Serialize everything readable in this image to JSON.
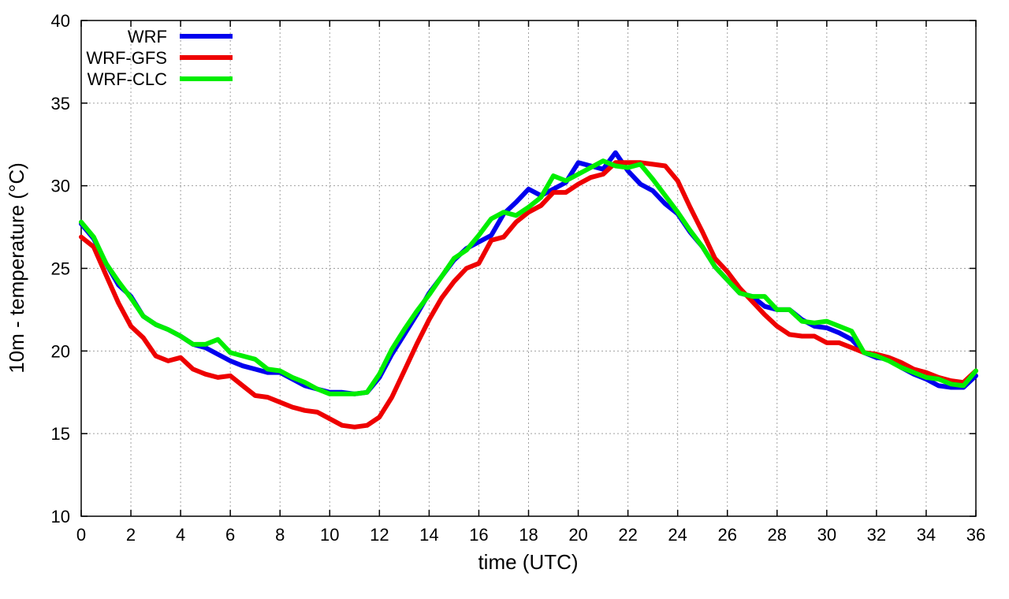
{
  "chart_data": {
    "type": "line",
    "title": "",
    "xlabel": "time (UTC)",
    "ylabel": "10m - temperature (°C)",
    "xlim": [
      0,
      36
    ],
    "ylim": [
      10,
      40
    ],
    "xticks": [
      "0",
      "2",
      "4",
      "6",
      "8",
      "10",
      "12",
      "14",
      "16",
      "18",
      "20",
      "22",
      "24",
      "26",
      "28",
      "30",
      "32",
      "34",
      "36"
    ],
    "yticks": [
      "10",
      "15",
      "20",
      "25",
      "30",
      "35",
      "40"
    ],
    "grid": true,
    "legend_position": "top-left",
    "x": [
      0,
      0.5,
      1,
      1.5,
      2,
      2.5,
      3,
      3.5,
      4,
      4.5,
      5,
      5.5,
      6,
      6.5,
      7,
      7.5,
      8,
      8.5,
      9,
      9.5,
      10,
      10.5,
      11,
      11.5,
      12,
      12.5,
      13,
      13.5,
      14,
      14.5,
      15,
      15.5,
      16,
      16.5,
      17,
      17.5,
      18,
      18.5,
      19,
      19.5,
      20,
      20.5,
      21,
      21.5,
      22,
      22.5,
      23,
      23.5,
      24,
      24.5,
      25,
      25.5,
      26,
      26.5,
      27,
      27.5,
      28,
      28.5,
      29,
      29.5,
      30,
      30.5,
      31,
      31.5,
      32,
      32.5,
      33,
      33.5,
      34,
      34.5,
      35,
      35.5,
      36
    ],
    "series": [
      {
        "name": "WRF",
        "color": "#0000ee",
        "values": [
          27.7,
          26.8,
          25.3,
          24.0,
          23.3,
          22.1,
          21.6,
          21.3,
          20.9,
          20.4,
          20.2,
          19.8,
          19.4,
          19.1,
          18.9,
          18.7,
          18.7,
          18.3,
          17.9,
          17.7,
          17.5,
          17.5,
          17.4,
          17.5,
          18.4,
          19.8,
          21.0,
          22.2,
          23.5,
          24.5,
          25.5,
          26.2,
          26.6,
          27.0,
          28.3,
          29.0,
          29.8,
          29.4,
          29.8,
          30.2,
          31.4,
          31.2,
          31.0,
          32.0,
          30.9,
          30.1,
          29.7,
          28.9,
          28.3,
          27.2,
          26.3,
          25.1,
          24.3,
          23.5,
          23.3,
          22.7,
          22.5,
          22.5,
          21.9,
          21.5,
          21.4,
          21.1,
          20.7,
          19.9,
          19.6,
          19.5,
          19.0,
          18.6,
          18.3,
          17.9,
          17.8,
          17.8,
          18.5
        ]
      },
      {
        "name": "WRF-GFS",
        "color": "#ee0000",
        "values": [
          26.9,
          26.3,
          24.6,
          22.9,
          21.5,
          20.8,
          19.7,
          19.4,
          19.6,
          18.9,
          18.6,
          18.4,
          18.5,
          17.9,
          17.3,
          17.2,
          16.9,
          16.6,
          16.4,
          16.3,
          15.9,
          15.5,
          15.4,
          15.5,
          16.0,
          17.2,
          18.8,
          20.4,
          21.9,
          23.2,
          24.2,
          25.0,
          25.3,
          26.7,
          26.9,
          27.8,
          28.4,
          28.8,
          29.6,
          29.6,
          30.1,
          30.5,
          30.7,
          31.4,
          31.4,
          31.4,
          31.3,
          31.2,
          30.3,
          28.7,
          27.2,
          25.6,
          24.8,
          23.8,
          23.0,
          22.2,
          21.5,
          21.0,
          20.9,
          20.9,
          20.5,
          20.5,
          20.2,
          19.9,
          19.8,
          19.6,
          19.3,
          18.9,
          18.7,
          18.4,
          18.2,
          18.1,
          18.8
        ]
      },
      {
        "name": "WRF-CLC",
        "color": "#00ee00",
        "values": [
          27.8,
          26.9,
          25.3,
          24.2,
          23.2,
          22.1,
          21.6,
          21.3,
          20.9,
          20.4,
          20.4,
          20.7,
          19.9,
          19.7,
          19.5,
          18.9,
          18.8,
          18.4,
          18.1,
          17.7,
          17.4,
          17.4,
          17.4,
          17.5,
          18.6,
          20.1,
          21.3,
          22.4,
          23.4,
          24.5,
          25.6,
          26.1,
          27.0,
          28.0,
          28.4,
          28.2,
          28.7,
          29.3,
          30.6,
          30.3,
          30.7,
          31.1,
          31.5,
          31.2,
          31.1,
          31.3,
          30.4,
          29.4,
          28.4,
          27.3,
          26.3,
          25.1,
          24.3,
          23.5,
          23.3,
          23.3,
          22.5,
          22.5,
          21.8,
          21.7,
          21.8,
          21.5,
          21.2,
          19.9,
          19.7,
          19.4,
          19.0,
          18.7,
          18.4,
          18.3,
          18.0,
          17.9,
          18.8
        ]
      }
    ]
  }
}
